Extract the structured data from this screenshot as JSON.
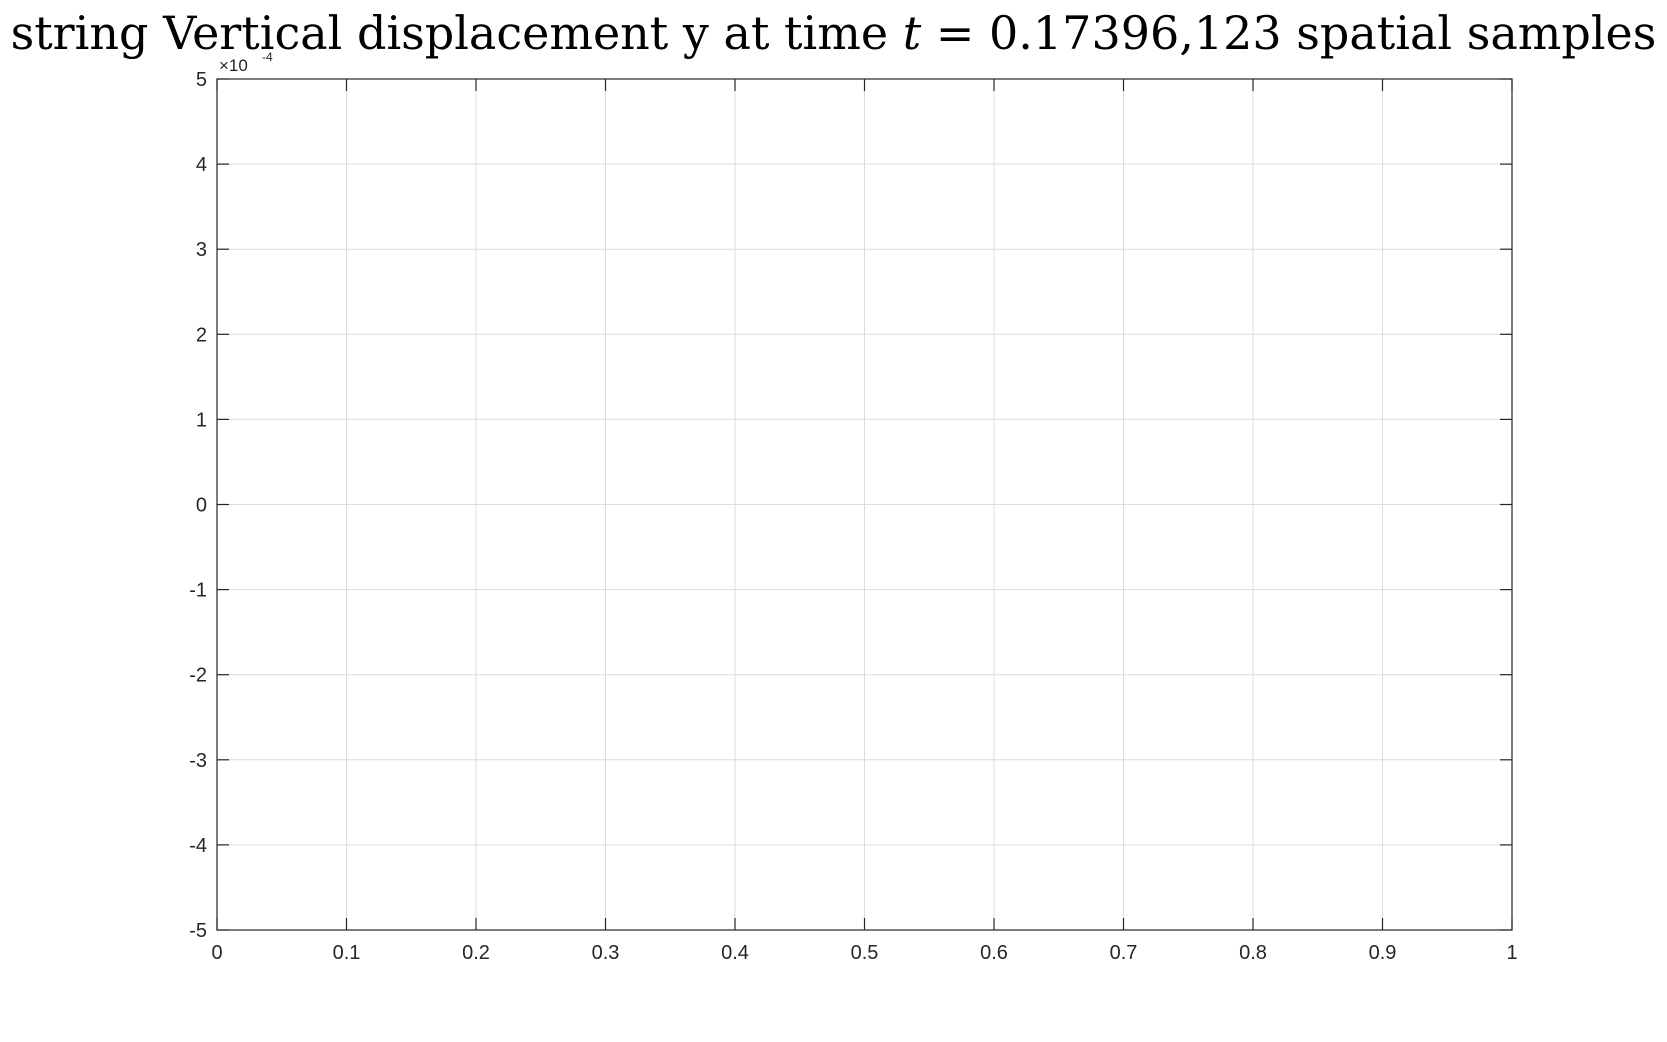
{
  "title": {
    "prefix": "string Vertical displacement y at time ",
    "variable": "t",
    "equals": " = ",
    "time_value": "0.17396",
    "suffix": ",123 spatial samples"
  },
  "chart_data": {
    "type": "line",
    "title": "string Vertical displacement y at time t = 0.17396,123 spatial samples",
    "xlim": [
      0,
      1
    ],
    "ylim": [
      -0.0005,
      0.0005
    ],
    "x_ticks": [
      0,
      0.1,
      0.2,
      0.3,
      0.4,
      0.5,
      0.6,
      0.7,
      0.8,
      0.9,
      1
    ],
    "x_tick_labels": [
      "0",
      "0.1",
      "0.2",
      "0.3",
      "0.4",
      "0.5",
      "0.6",
      "0.7",
      "0.8",
      "0.9",
      "1"
    ],
    "y_ticks": [
      5,
      4,
      3,
      2,
      1,
      0,
      -1,
      -2,
      -3,
      -4,
      -5
    ],
    "y_tick_labels": [
      "5",
      "4",
      "3",
      "2",
      "1",
      "0",
      "-1",
      "-2",
      "-3",
      "-4",
      "-5"
    ],
    "y_exponent": {
      "base": "×10",
      "power": "-4"
    },
    "grid": true,
    "series": [],
    "xlabel": "",
    "ylabel": ""
  },
  "colors": {
    "axis": "#262626",
    "grid": "#dcdcdc",
    "background": "#ffffff"
  }
}
